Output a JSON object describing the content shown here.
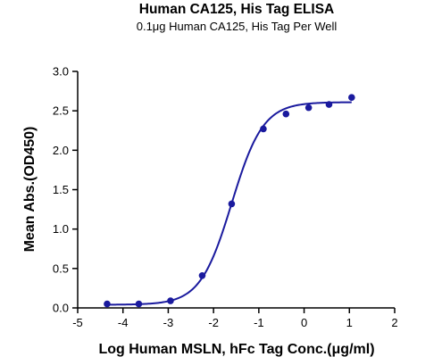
{
  "chart_data": {
    "type": "scatter",
    "title": "Human CA125, His Tag ELISA",
    "subtitle": "0.1μg Human CA125, His Tag Per Well",
    "xlabel": "Log Human MSLN, hFc Tag Conc.(μg/ml)",
    "ylabel": "Mean Abs.(OD450)",
    "xlim": [
      -5,
      2
    ],
    "ylim": [
      0,
      3
    ],
    "x_ticks": [
      -5,
      -4,
      -3,
      -2,
      -1,
      0,
      1,
      2
    ],
    "y_ticks": [
      "0.0",
      "0.5",
      "1.0",
      "1.5",
      "2.0",
      "2.5",
      "3.0"
    ],
    "grid": false,
    "colors": {
      "series": "#1a1a9e"
    },
    "series": [
      {
        "x": [
          -4.35,
          -3.65,
          -2.95,
          -2.25,
          -1.6,
          -0.9,
          -0.4,
          0.1,
          0.55,
          1.05
        ],
        "y": [
          0.05,
          0.05,
          0.09,
          0.41,
          1.32,
          2.27,
          2.46,
          2.54,
          2.58,
          2.67
        ]
      }
    ],
    "fit_curve": {
      "bottom": 0.04,
      "top": 2.61,
      "log_ec50": -1.6,
      "hill_slope": 1.25
    }
  }
}
